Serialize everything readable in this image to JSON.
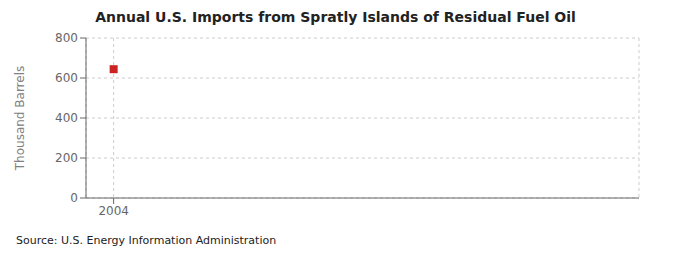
{
  "chart_data": {
    "type": "scatter",
    "title": "Annual U.S. Imports from Spratly Islands of Residual Fuel Oil",
    "ylabel": "Thousand Barrels",
    "annotation": "Source: U.S. Energy Information Administration",
    "x": [
      2004
    ],
    "values": [
      644
    ],
    "color": "#cc2222",
    "marker": "square",
    "xlim": [
      2003.5,
      2013.5
    ],
    "xticks": [
      2004
    ],
    "ylim": [
      0,
      800
    ],
    "yticks": [
      0,
      200,
      400,
      600,
      800
    ],
    "grid": true
  }
}
